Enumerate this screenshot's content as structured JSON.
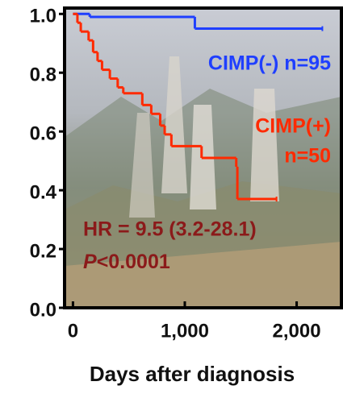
{
  "chart_data": {
    "type": "step",
    "x_label": "Days after diagnosis",
    "xlim": [
      -75,
      2400
    ],
    "ylim": [
      0,
      1.02
    ],
    "xticks": [
      0,
      {
        "value": 1000,
        "label": "1,000"
      },
      {
        "value": 2000,
        "label": "2,000"
      }
    ],
    "yticks": [
      {
        "value": 0,
        "label": "0.0"
      },
      {
        "value": 0.2,
        "label": "0.2"
      },
      {
        "value": 0.4,
        "label": "0.4"
      },
      {
        "value": 0.6,
        "label": "0.6"
      },
      {
        "value": 0.8,
        "label": "0.8"
      },
      {
        "value": 1,
        "label": "1.0"
      }
    ],
    "series": [
      {
        "name": "CIMP(-) n=95",
        "color": "#1f3fff",
        "x": [
          0,
          150,
          1090,
          2230
        ],
        "values": [
          1.0,
          0.99,
          0.95,
          0.95
        ]
      },
      {
        "name": "CIMP(+)",
        "name_line2": "n=50",
        "color": "#ff2a00",
        "x": [
          0,
          40,
          70,
          140,
          180,
          220,
          260,
          330,
          400,
          450,
          620,
          700,
          780,
          820,
          880,
          1150,
          1460,
          1470,
          1820
        ],
        "values": [
          1.0,
          0.97,
          0.94,
          0.91,
          0.87,
          0.84,
          0.81,
          0.78,
          0.75,
          0.73,
          0.69,
          0.66,
          0.62,
          0.59,
          0.55,
          0.51,
          0.48,
          0.37,
          0.37
        ]
      }
    ],
    "annotations": {
      "hr": "HR = 9.5 (3.2-28.1)",
      "p_symbol": "P",
      "p_text": "<0.0001",
      "color": "#8b1a1a"
    }
  }
}
